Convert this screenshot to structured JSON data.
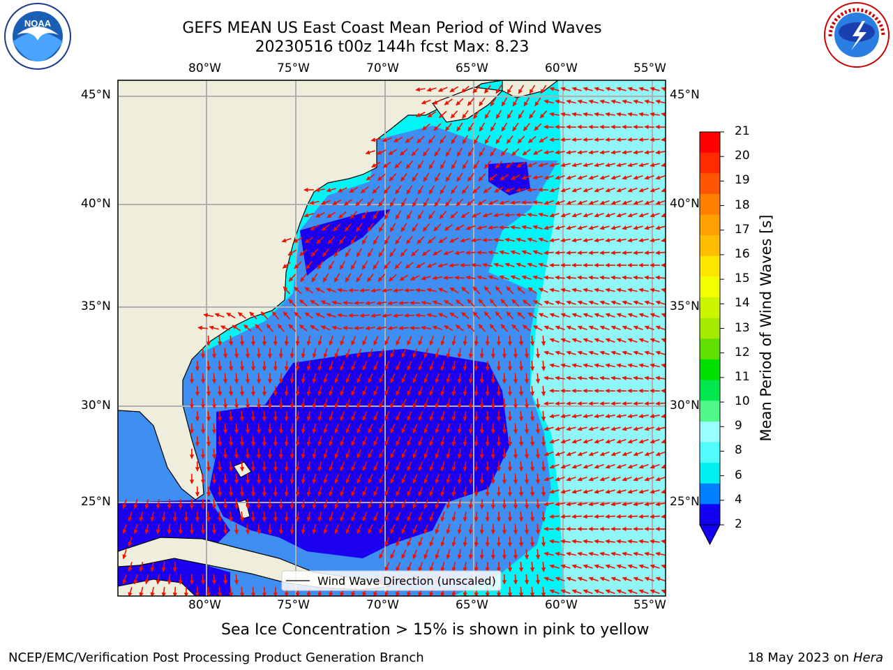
{
  "header": {
    "title_line1": "GEFS MEAN US East Coast Mean Period of Wind Waves",
    "title_line2": "20230516 t00z 144h fcst   Max: 8.23"
  },
  "logos": {
    "left": "NOAA",
    "right": "NATIONAL WEATHER SERVICE"
  },
  "map": {
    "lon_ticks": [
      "80°W",
      "75°W",
      "70°W",
      "65°W",
      "60°W",
      "55°W"
    ],
    "lat_ticks": [
      "45°N",
      "40°N",
      "35°N",
      "30°N",
      "25°N"
    ],
    "legend_label": "Wind Wave Direction (unscaled)",
    "colors": {
      "land": "#efeedc",
      "ocean_deep_blue": "#1a00ee",
      "ocean_blue": "#3f8ef2",
      "ocean_cyan": "#00f6f6",
      "ocean_light_cyan": "#8ff5f5",
      "arrow": "#ee1100",
      "grid": "#b0b0b0"
    }
  },
  "colorbar": {
    "label": "Mean Period of Wind Waves [s]",
    "ticks": [
      "21",
      "20",
      "19",
      "18",
      "17",
      "16",
      "15",
      "14",
      "13",
      "12",
      "11",
      "10",
      "9",
      "8",
      "6",
      "4",
      "2"
    ],
    "colors": [
      "#ff0000",
      "#ff2a00",
      "#ff5500",
      "#ff7f00",
      "#ff9f00",
      "#ffbf00",
      "#ffe600",
      "#f2ff00",
      "#ccf500",
      "#a5eb00",
      "#5fe000",
      "#00e000",
      "#00e64d",
      "#52f78a",
      "#9cffff",
      "#52fcfc",
      "#00f0f0",
      "#0080ff",
      "#1400f0"
    ]
  },
  "footer": {
    "note": "Sea Ice Concentration > 15% is shown in pink to yellow",
    "left": "NCEP/EMC/Verification Post Processing Product Generation Branch",
    "right_date": "18 May 2023 on",
    "right_machine": "Hera"
  }
}
